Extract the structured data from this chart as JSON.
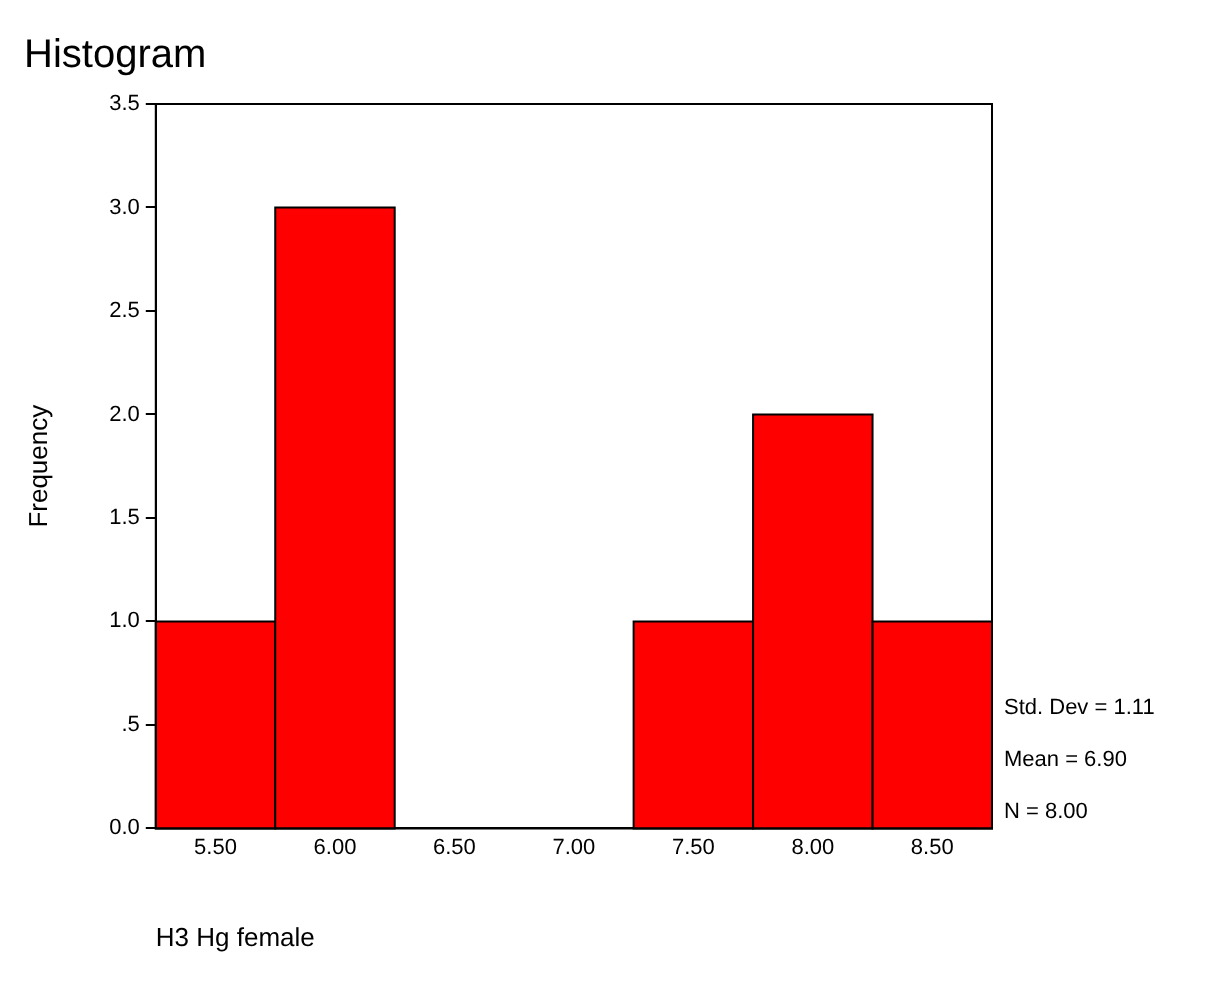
{
  "chart_data": {
    "type": "histogram",
    "title": "Histogram",
    "xlabel": "H3 Hg female",
    "ylabel": "Frequency",
    "bins": [
      5.25,
      5.75,
      6.25,
      6.75,
      7.25,
      7.75,
      8.25,
      8.75
    ],
    "values": [
      1,
      3,
      0,
      0,
      1,
      2,
      1
    ],
    "color": "#ff0000",
    "xlim": [
      5.25,
      8.75
    ],
    "xticks": [
      {
        "value": 5.5,
        "label": "5.50"
      },
      {
        "value": 6,
        "label": "6.00"
      },
      {
        "value": 6.5,
        "label": "6.50"
      },
      {
        "value": 7,
        "label": "7.00"
      },
      {
        "value": 7.5,
        "label": "7.50"
      },
      {
        "value": 8,
        "label": "8.00"
      },
      {
        "value": 8.5,
        "label": "8.50"
      }
    ],
    "ylim": [
      0,
      3.5
    ],
    "yticks": [
      {
        "value": 0,
        "label": "0.0"
      },
      {
        "value": 0.5,
        "label": ".5"
      },
      {
        "value": 1,
        "label": "1.0"
      },
      {
        "value": 1.5,
        "label": "1.5"
      },
      {
        "value": 2,
        "label": "2.0"
      },
      {
        "value": 2.5,
        "label": "2.5"
      },
      {
        "value": 3,
        "label": "3.0"
      },
      3.5
    ],
    "annotations": [
      "Std. Dev = 1.11",
      "Mean = 6.90",
      "N = 8.00"
    ]
  }
}
